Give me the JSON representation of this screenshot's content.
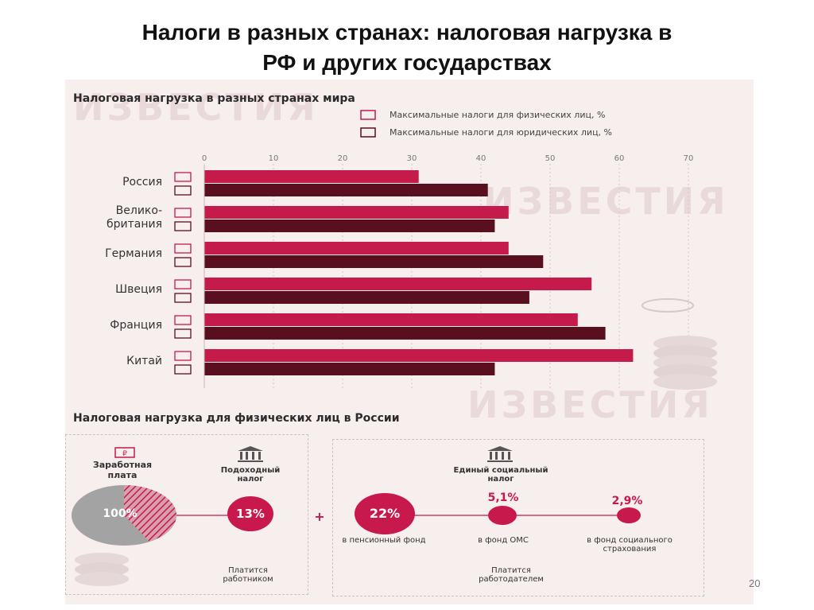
{
  "slide": {
    "title_line1": "Налоги в разных странах: налоговая нагрузка в",
    "title_line2": "РФ и других государствах",
    "page_number": "20"
  },
  "watermark": "ИЗВЕСТИЯ",
  "colors": {
    "individual": "#c41b4a",
    "corporate": "#5a0f1e",
    "accent": "#c8194c",
    "grey": "#a3a3a3"
  },
  "chart_data": {
    "type": "bar",
    "orientation": "horizontal",
    "title": "Налоговая нагрузка в разных странах мира",
    "categories": [
      "Россия",
      "Велико-\nбритания",
      "Германия",
      "Швеция",
      "Франция",
      "Китай"
    ],
    "series": [
      {
        "name": "Максимальные налоги для физических лиц, %",
        "values": [
          31,
          44,
          44,
          56,
          54,
          62
        ]
      },
      {
        "name": "Максимальные налоги для юридических лиц, %",
        "values": [
          41,
          42,
          49,
          47,
          58,
          42
        ]
      }
    ],
    "xlim": [
      0,
      70
    ],
    "ticks": [
      0,
      10,
      20,
      30,
      40,
      50,
      60,
      70
    ],
    "legend_position": "top-right"
  },
  "section2": {
    "title": "Налоговая нагрузка для физических лиц в России",
    "salary_label": "Заработная плата",
    "salary_value": "100%",
    "income_tax_label": "Подоходный налог",
    "income_tax_value": "13%",
    "paid_by_employee": "Платится работником",
    "plus": "+",
    "social_tax_label": "Единый социальный налог",
    "pension_value": "22%",
    "pension_label": "в пенсионный фонд",
    "oms_value": "5,1%",
    "oms_label": "в фонд ОМС",
    "social_value": "2,9%",
    "social_label": "в фонд социального страхования",
    "paid_by_employer": "Платится работодателем"
  }
}
